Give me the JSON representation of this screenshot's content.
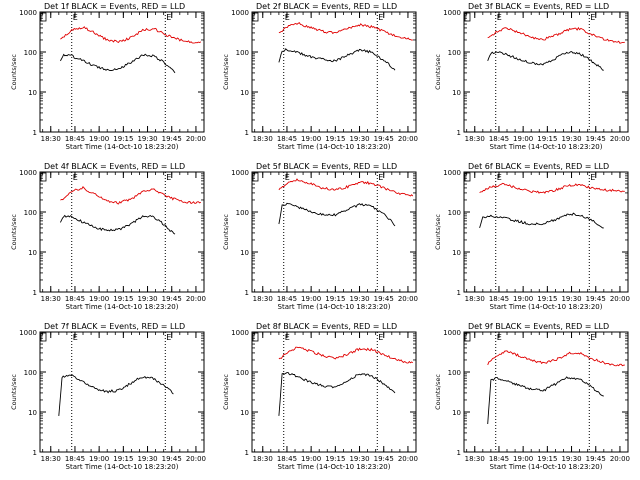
{
  "colors": {
    "events": "#000000",
    "lld": "#e00000",
    "axis": "#000000",
    "background": "#ffffff"
  },
  "x_tick_labels": [
    "18:30",
    "18:45",
    "19:00",
    "19:15",
    "19:30",
    "19:45",
    "20:00"
  ],
  "y_tick_labels": [
    "1",
    "10",
    "100",
    "1000"
  ],
  "ylabel": "Counts/sec",
  "xlabel": "Start Time (14-Oct-10 18:23:20)",
  "chart_data": [
    {
      "type": "line",
      "title": "Det 1f BLACK = Events, RED = LLD",
      "xlim": [
        "18:23:20",
        "20:05"
      ],
      "ylim": [
        1,
        1000
      ],
      "yscale": "log",
      "events_marker": [
        "18:43",
        "19:41"
      ],
      "series": [
        {
          "name": "Events",
          "x": [
            "18:36",
            "18:38",
            "18:43",
            "18:50",
            "18:57",
            "19:05",
            "19:12",
            "19:20",
            "19:27",
            "19:34",
            "19:40",
            "19:44",
            "19:47"
          ],
          "values": [
            60,
            85,
            80,
            60,
            45,
            36,
            38,
            55,
            85,
            80,
            55,
            40,
            30
          ]
        },
        {
          "name": "LLD",
          "x": [
            "18:36",
            "18:43",
            "18:50",
            "18:57",
            "19:05",
            "19:12",
            "19:20",
            "19:27",
            "19:34",
            "19:42",
            "19:50",
            "19:57",
            "20:03"
          ],
          "values": [
            200,
            350,
            420,
            300,
            200,
            180,
            230,
            350,
            380,
            260,
            200,
            175,
            180
          ]
        }
      ]
    },
    {
      "type": "line",
      "title": "Det 2f BLACK = Events, RED = LLD",
      "xlim": [
        "18:23:20",
        "20:05"
      ],
      "ylim": [
        1,
        1000
      ],
      "yscale": "log",
      "events_marker": [
        "18:43",
        "19:41"
      ],
      "series": [
        {
          "name": "Events",
          "x": [
            "18:40",
            "18:42",
            "18:45",
            "18:52",
            "19:00",
            "19:08",
            "19:15",
            "19:22",
            "19:30",
            "19:37",
            "19:43",
            "19:48",
            "19:52"
          ],
          "values": [
            55,
            110,
            115,
            95,
            75,
            65,
            60,
            80,
            110,
            100,
            70,
            50,
            35
          ]
        },
        {
          "name": "LLD",
          "x": [
            "18:40",
            "18:46",
            "18:52",
            "19:00",
            "19:08",
            "19:15",
            "19:22",
            "19:30",
            "19:38",
            "19:45",
            "19:52",
            "19:58",
            "20:03"
          ],
          "values": [
            300,
            450,
            520,
            400,
            320,
            300,
            380,
            480,
            420,
            330,
            250,
            220,
            200
          ]
        }
      ]
    },
    {
      "type": "line",
      "title": "Det 3f BLACK = Events, RED = LLD",
      "xlim": [
        "18:23:20",
        "20:05"
      ],
      "ylim": [
        1,
        1000
      ],
      "yscale": "log",
      "events_marker": [
        "18:43",
        "19:41"
      ],
      "series": [
        {
          "name": "Events",
          "x": [
            "18:38",
            "18:40",
            "18:44",
            "18:50",
            "18:58",
            "19:06",
            "19:13",
            "19:20",
            "19:27",
            "19:34",
            "19:40",
            "19:45",
            "19:50"
          ],
          "values": [
            60,
            95,
            100,
            85,
            65,
            52,
            50,
            70,
            100,
            95,
            70,
            50,
            35
          ]
        },
        {
          "name": "LLD",
          "x": [
            "18:38",
            "18:44",
            "18:50",
            "18:58",
            "19:06",
            "19:13",
            "19:20",
            "19:28",
            "19:35",
            "19:42",
            "19:50",
            "19:57",
            "20:03"
          ],
          "values": [
            220,
            330,
            400,
            300,
            230,
            210,
            260,
            360,
            380,
            280,
            210,
            180,
            175
          ]
        }
      ]
    },
    {
      "type": "line",
      "title": "Det 4f BLACK = Events, RED = LLD",
      "xlim": [
        "18:23:20",
        "20:05"
      ],
      "ylim": [
        1,
        1000
      ],
      "yscale": "log",
      "events_marker": [
        "18:43",
        "19:41"
      ],
      "series": [
        {
          "name": "Events",
          "x": [
            "18:36",
            "18:38",
            "18:43",
            "18:50",
            "18:57",
            "19:05",
            "19:12",
            "19:20",
            "19:27",
            "19:34",
            "19:40",
            "19:44",
            "19:47"
          ],
          "values": [
            55,
            80,
            78,
            55,
            42,
            34,
            36,
            50,
            80,
            75,
            50,
            35,
            28
          ]
        },
        {
          "name": "LLD",
          "x": [
            "18:36",
            "18:43",
            "18:50",
            "18:57",
            "19:05",
            "19:12",
            "19:20",
            "19:27",
            "19:34",
            "19:42",
            "19:50",
            "19:57",
            "20:03"
          ],
          "values": [
            190,
            330,
            400,
            280,
            190,
            170,
            210,
            330,
            360,
            240,
            190,
            170,
            175
          ]
        }
      ]
    },
    {
      "type": "line",
      "title": "Det 5f BLACK = Events, RED = LLD",
      "xlim": [
        "18:23:20",
        "20:05"
      ],
      "ylim": [
        1,
        1000
      ],
      "yscale": "log",
      "events_marker": [
        "18:43",
        "19:41"
      ],
      "series": [
        {
          "name": "Events",
          "x": [
            "18:40",
            "18:42",
            "18:45",
            "18:52",
            "19:00",
            "19:08",
            "19:15",
            "19:22",
            "19:30",
            "19:37",
            "19:43",
            "19:48",
            "19:52"
          ],
          "values": [
            50,
            140,
            165,
            130,
            100,
            85,
            85,
            110,
            155,
            140,
            100,
            70,
            45
          ]
        },
        {
          "name": "LLD",
          "x": [
            "18:40",
            "18:46",
            "18:52",
            "19:00",
            "19:08",
            "19:15",
            "19:22",
            "19:30",
            "19:38",
            "19:45",
            "19:52",
            "19:58",
            "20:03"
          ],
          "values": [
            360,
            560,
            640,
            500,
            390,
            360,
            420,
            560,
            520,
            400,
            310,
            270,
            250
          ]
        }
      ]
    },
    {
      "type": "line",
      "title": "Det 6f BLACK = Events, RED = LLD",
      "xlim": [
        "18:23:20",
        "20:05"
      ],
      "ylim": [
        1,
        1000
      ],
      "yscale": "log",
      "events_marker": [
        "18:43",
        "19:41"
      ],
      "series": [
        {
          "name": "Events",
          "x": [
            "18:33",
            "18:35",
            "18:40",
            "18:48",
            "18:56",
            "19:04",
            "19:12",
            "19:20",
            "19:28",
            "19:35",
            "19:42",
            "19:46",
            "19:50"
          ],
          "values": [
            40,
            75,
            80,
            70,
            60,
            50,
            50,
            65,
            90,
            85,
            65,
            50,
            40
          ]
        },
        {
          "name": "LLD",
          "x": [
            "18:33",
            "18:40",
            "18:48",
            "18:56",
            "19:04",
            "19:12",
            "19:20",
            "19:28",
            "19:35",
            "19:42",
            "19:50",
            "19:57",
            "20:03"
          ],
          "values": [
            300,
            420,
            500,
            400,
            330,
            310,
            350,
            460,
            480,
            400,
            360,
            340,
            330
          ]
        }
      ]
    },
    {
      "type": "line",
      "title": "Det 7f BLACK = Events, RED = LLD",
      "xlim": [
        "18:23:20",
        "20:05"
      ],
      "ylim": [
        1,
        1000
      ],
      "yscale": "log",
      "events_marker": [
        "18:43",
        "19:41"
      ],
      "series": [
        {
          "name": "Events",
          "x": [
            "18:35",
            "18:37",
            "18:42",
            "18:49",
            "18:56",
            "19:04",
            "19:11",
            "19:19",
            "19:26",
            "19:33",
            "19:39",
            "19:43",
            "19:46"
          ],
          "values": [
            8,
            75,
            85,
            60,
            42,
            32,
            34,
            50,
            75,
            70,
            50,
            38,
            28
          ]
        }
      ]
    },
    {
      "type": "line",
      "title": "Det 8f BLACK = Events, RED = LLD",
      "xlim": [
        "18:23:20",
        "20:05"
      ],
      "ylim": [
        1,
        1000
      ],
      "yscale": "log",
      "events_marker": [
        "18:43",
        "19:41"
      ],
      "series": [
        {
          "name": "Events",
          "x": [
            "18:40",
            "18:42",
            "18:45",
            "18:52",
            "19:00",
            "19:08",
            "19:15",
            "19:22",
            "19:30",
            "19:37",
            "19:43",
            "19:48",
            "19:52"
          ],
          "values": [
            8,
            85,
            95,
            75,
            55,
            44,
            42,
            60,
            90,
            82,
            58,
            42,
            30
          ]
        },
        {
          "name": "LLD",
          "x": [
            "18:40",
            "18:46",
            "18:52",
            "19:00",
            "19:08",
            "19:15",
            "19:22",
            "19:30",
            "19:38",
            "19:45",
            "19:52",
            "19:58",
            "20:03"
          ],
          "values": [
            200,
            330,
            420,
            330,
            250,
            220,
            270,
            380,
            360,
            270,
            210,
            180,
            170
          ]
        }
      ]
    },
    {
      "type": "line",
      "title": "Det 9f BLACK = Events, RED = LLD",
      "xlim": [
        "18:23:20",
        "20:05"
      ],
      "ylim": [
        1,
        1000
      ],
      "yscale": "log",
      "events_marker": [
        "18:43",
        "19:41"
      ],
      "series": [
        {
          "name": "Events",
          "x": [
            "18:38",
            "18:40",
            "18:44",
            "18:50",
            "18:58",
            "19:06",
            "19:13",
            "19:20",
            "19:27",
            "19:34",
            "19:40",
            "19:45",
            "19:50"
          ],
          "values": [
            5,
            60,
            70,
            60,
            45,
            36,
            35,
            50,
            72,
            68,
            50,
            35,
            25
          ]
        },
        {
          "name": "LLD",
          "x": [
            "18:38",
            "18:44",
            "18:50",
            "18:58",
            "19:06",
            "19:13",
            "19:20",
            "19:28",
            "19:35",
            "19:42",
            "19:50",
            "19:57",
            "20:03"
          ],
          "values": [
            160,
            260,
            330,
            250,
            190,
            170,
            200,
            290,
            300,
            220,
            170,
            150,
            150
          ]
        }
      ]
    }
  ]
}
